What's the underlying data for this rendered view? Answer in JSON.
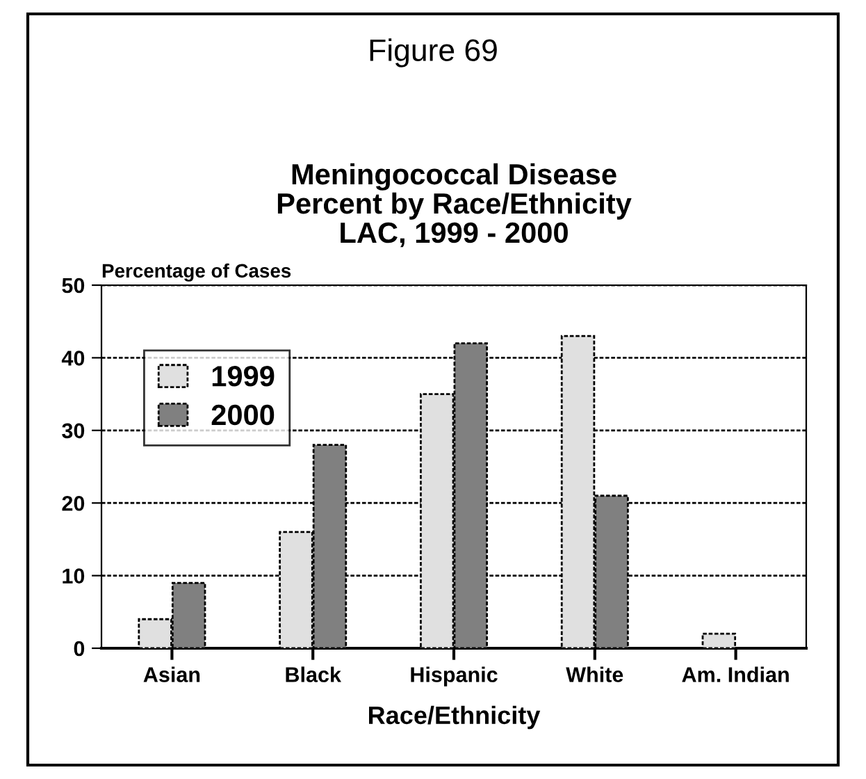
{
  "chart_data": {
    "type": "bar",
    "title": "Meningococcal Disease\nPercent by Race/Ethnicity\nLAC, 1999 - 2000",
    "annotations": [
      "Figure 69"
    ],
    "ylabel": "Percentage of Cases",
    "xlabel": "Race/Ethnicity",
    "categories": [
      "Asian",
      "Black",
      "Hispanic",
      "White",
      "Am. Indian"
    ],
    "series": [
      {
        "name": "1999",
        "color": "#e0e0e0",
        "values": [
          4,
          16,
          35,
          43,
          2
        ]
      },
      {
        "name": "2000",
        "color": "#808080",
        "values": [
          9,
          28,
          42,
          21,
          null
        ]
      }
    ],
    "ylim": [
      0,
      50
    ],
    "yticks": [
      0,
      10,
      20,
      30,
      40,
      50
    ],
    "grid": "y",
    "legend": "top left"
  }
}
